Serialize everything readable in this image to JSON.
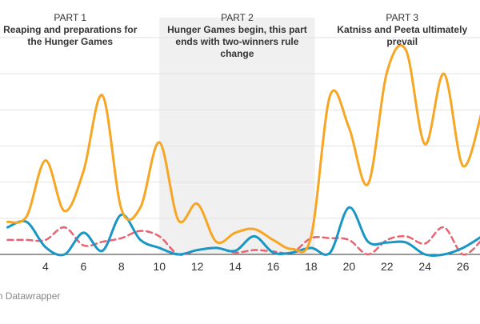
{
  "chart_data": {
    "type": "line",
    "x": [
      2,
      3,
      4,
      5,
      6,
      7,
      8,
      9,
      10,
      11,
      12,
      13,
      14,
      15,
      16,
      17,
      18,
      19,
      20,
      21,
      22,
      23,
      24,
      25,
      26,
      27
    ],
    "series": [
      {
        "color": "#f6a623",
        "dash": false,
        "values": [
          0.9,
          1.05,
          2.6,
          1.2,
          2.3,
          4.4,
          1.25,
          1.3,
          3.1,
          0.95,
          1.4,
          0.35,
          0.6,
          0.7,
          0.4,
          0.15,
          0.5,
          4.4,
          3.5,
          1.95,
          5.05,
          5.65,
          3.05,
          5.0,
          2.45,
          3.95
        ]
      },
      {
        "color": "#1a96c4",
        "dash": false,
        "values": [
          0.75,
          0.9,
          0.2,
          0,
          0.6,
          0.1,
          1.1,
          0.4,
          0.18,
          0,
          0.12,
          0.18,
          0.1,
          0.5,
          0.05,
          0.05,
          0.18,
          0.05,
          1.3,
          0.35,
          0.33,
          0.33,
          0,
          0,
          0.18,
          0.5
        ]
      },
      {
        "color": "#e8636f",
        "dash": true,
        "values": [
          0.4,
          0.4,
          0.4,
          0.75,
          0.25,
          0.35,
          0.45,
          0.65,
          0.5,
          0,
          0.12,
          0.18,
          0.05,
          0.12,
          0.08,
          0.05,
          0.45,
          0.45,
          0.4,
          0,
          0.4,
          0.5,
          0.3,
          0.75,
          0,
          0.4
        ]
      }
    ],
    "xlim": [
      1.6,
      26.9
    ],
    "xticks": [
      4,
      6,
      8,
      10,
      12,
      14,
      16,
      18,
      20,
      22,
      24,
      26
    ],
    "ylim": [
      0,
      6
    ],
    "yticks": [
      1,
      2,
      3,
      4,
      5,
      6
    ],
    "grid": true,
    "highlight": [
      10,
      18.2
    ],
    "annotations": [
      {
        "x": 5.3,
        "lines": [
          "PART 1",
          "Reaping and preparations for",
          "the Hunger Games"
        ]
      },
      {
        "x": 14.1,
        "lines": [
          "PART 2",
          "Hunger Games begin, this part",
          "ends with two-winners rule",
          "change"
        ]
      },
      {
        "x": 22.8,
        "lines": [
          "PART 3",
          "Katniss and Peeta ultimately",
          "prevail"
        ]
      }
    ],
    "footer": "Created with Datawrapper"
  }
}
